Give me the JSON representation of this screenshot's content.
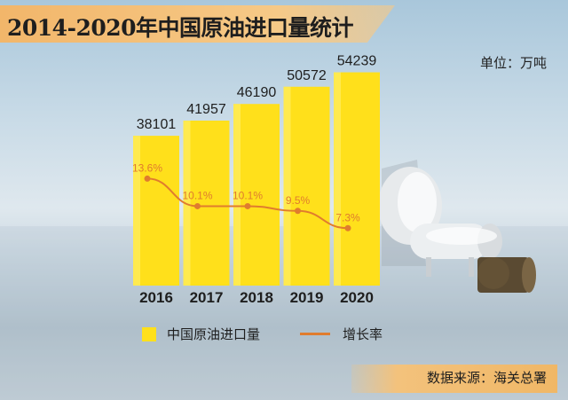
{
  "title": "2014-2020年中国原油进口量统计",
  "unit_label": "单位：万吨",
  "source": "数据来源：海关总署",
  "colors": {
    "bar": "#ffe01b",
    "line": "#e07c2e",
    "title_band": "#f6c987"
  },
  "legend": {
    "bar_label": "中国原油进口量",
    "line_label": "增长率"
  },
  "chart_data": {
    "type": "bar",
    "categories": [
      "2016",
      "2017",
      "2018",
      "2019",
      "2020"
    ],
    "series": [
      {
        "name": "中国原油进口量",
        "values": [
          38101,
          41957,
          46190,
          50572,
          54239
        ]
      },
      {
        "name": "增长率",
        "values": [
          13.6,
          10.1,
          10.1,
          9.5,
          7.3
        ]
      }
    ],
    "value_labels": [
      "38101",
      "41957",
      "46190",
      "50572",
      "54239"
    ],
    "rate_labels": [
      "13.6%",
      "10.1%",
      "10.1%",
      "9.5%",
      "7.3%"
    ],
    "ylim": [
      0,
      60000
    ],
    "grid": false,
    "legend_position": "bottom"
  }
}
